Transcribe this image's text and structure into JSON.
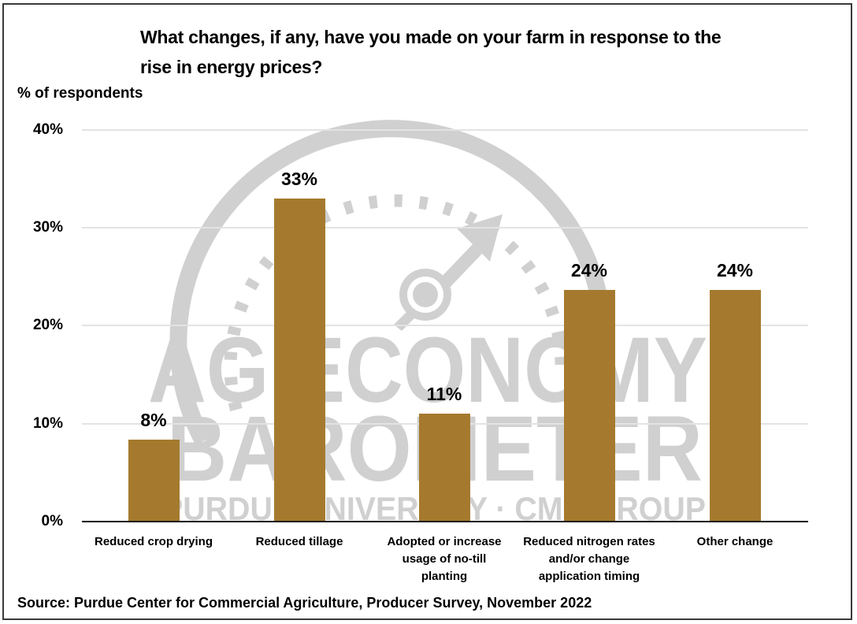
{
  "chart_data": {
    "type": "bar",
    "title": "What changes, if any, have you made on your farm in response to the rise in energy prices?",
    "xlabel": "",
    "ylabel": "% of respondents",
    "ylim": [
      0,
      40
    ],
    "yticks": [
      "0%",
      "10%",
      "20%",
      "30%",
      "40%"
    ],
    "grid": true,
    "legend": null,
    "categories": [
      "Reduced crop drying",
      "Reduced tillage",
      "Adopted or increase usage of no-till planting",
      "Reduced nitrogen rates and/or change application timing",
      "Other change"
    ],
    "values": [
      8,
      33,
      11,
      24,
      24
    ],
    "value_labels": [
      "8%",
      "33%",
      "11%",
      "24%",
      "24%"
    ],
    "bar_color": "#a57a2e",
    "source": "Source: Purdue Center for Commercial Agriculture, Producer Survey, November 2022",
    "watermark": [
      "AG ECONOMY",
      "BAROMETER",
      "PURDUE UNIVERSITY · CME GROUP"
    ]
  },
  "title_line1": "What changes, if any, have you made on your farm in response to the",
  "title_line2": "rise in energy prices?",
  "category_lines": [
    [
      "Reduced crop drying"
    ],
    [
      "Reduced tillage"
    ],
    [
      "Adopted or increase",
      "usage of no-till",
      "planting"
    ],
    [
      "Reduced nitrogen rates",
      "and/or change",
      "application timing"
    ],
    [
      "Other change"
    ]
  ]
}
